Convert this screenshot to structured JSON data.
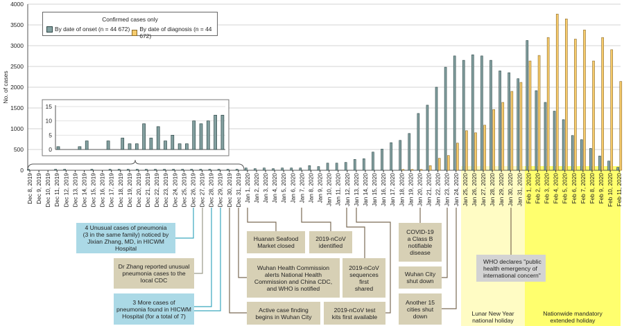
{
  "chart_data": {
    "type": "bar",
    "title": "",
    "xlabel": "",
    "ylabel": "No. of cases",
    "ylim": [
      0,
      4000
    ],
    "yticks": [
      "0",
      "500",
      "1000",
      "1500",
      "2000",
      "2500",
      "3000",
      "3500",
      "4000"
    ],
    "grid": true,
    "legend": {
      "position": "top-left",
      "title": "Confirmed cases only"
    },
    "categories": [
      "Dec 8, 2019",
      "Dec 9, 2019",
      "Dec 10, 2019",
      "Dec 11, 2019",
      "Dec 12, 2019",
      "Dec 13, 2019",
      "Dec 14, 2019",
      "Dec 15, 2019",
      "Dec 16, 2019",
      "Dec 17, 2019",
      "Dec 18, 2019",
      "Dec 19, 2019",
      "Dec 20, 2019",
      "Dec 21, 2019",
      "Dec 22, 2019",
      "Dec 23, 2019",
      "Dec 24, 2019",
      "Dec 25, 2019",
      "Dec 26, 2019",
      "Dec 27, 2019",
      "Dec 28, 2019",
      "Dec 29, 2019",
      "Dec 30, 2019",
      "Dec 31, 2019",
      "Jan 1, 2020",
      "Jan 2, 2020",
      "Jan 3, 2020",
      "Jan 4, 2020",
      "Jan 5, 2020",
      "Jan 6, 2020",
      "Jan 7, 2020",
      "Jan 8, 2020",
      "Jan 9, 2020",
      "Jan 10, 2020",
      "Jan 11, 2020",
      "Jan 12, 2020",
      "Jan 13, 2020",
      "Jan 14, 2020",
      "Jan 15, 2020",
      "Jan 16, 2020",
      "Jan 17, 2020",
      "Jan 18, 2020",
      "Jan 19, 2020",
      "Jan 20, 2020",
      "Jan 21, 2020",
      "Jan 22, 2020",
      "Jan 23, 2020",
      "Jan 24, 2020",
      "Jan 25, 2020",
      "Jan 26, 2020",
      "Jan 27, 2020",
      "Jan 28, 2020",
      "Jan 29, 2020",
      "Jan 30, 2020",
      "Jan 31, 2020",
      "Feb 1, 2020",
      "Feb 2, 2020",
      "Feb 3, 2020",
      "Feb 4, 2020",
      "Feb 5, 2020",
      "Feb 6, 2020",
      "Feb 7, 2020",
      "Feb 8, 2020",
      "Feb 9, 2020",
      "Feb 10, 2020",
      "Feb 11, 2020"
    ],
    "series": [
      {
        "name": "By date of onset (n = 44 672)",
        "color": "#83a0a0",
        "edge": "#2c4646",
        "values": [
          1,
          0,
          0,
          1,
          3,
          0,
          0,
          3,
          0,
          4,
          2,
          2,
          9,
          4,
          8,
          3,
          5,
          2,
          2,
          10,
          9,
          10,
          12,
          12,
          55,
          39,
          55,
          39,
          55,
          55,
          55,
          111,
          89,
          172,
          172,
          189,
          261,
          278,
          438,
          510,
          665,
          720,
          886,
          1368,
          1568,
          2000,
          2482,
          2753,
          2648,
          2781,
          2753,
          2648,
          2393,
          2349,
          2205,
          3125,
          1917,
          1634,
          1424,
          1219,
          837,
          737,
          526,
          343,
          222,
          72
        ]
      },
      {
        "name": "By date of diagnosis (n = 44 672)",
        "color": "#f6cb6c",
        "edge": "#8a6a2a",
        "values": [
          0,
          0,
          0,
          0,
          0,
          0,
          0,
          0,
          0,
          0,
          0,
          0,
          0,
          0,
          0,
          0,
          0,
          0,
          0,
          0,
          0,
          0,
          0,
          0,
          0,
          0,
          0,
          0,
          0,
          0,
          0,
          0,
          0,
          0,
          0,
          0,
          0,
          0,
          0,
          0,
          0,
          5,
          5,
          5,
          111,
          288,
          355,
          654,
          953,
          903,
          1086,
          1463,
          1634,
          1900,
          2116,
          2632,
          2765,
          3197,
          3762,
          3645,
          3158,
          3379,
          2632,
          3197,
          2903,
          2139
        ]
      }
    ],
    "inset": {
      "range": [
        "Dec 8, 2019",
        "Dec 31, 2019"
      ],
      "ylim": [
        0,
        15
      ],
      "yticks": [
        "0",
        "5",
        "10",
        "15"
      ]
    }
  },
  "annotations": {
    "a1": "4 Unusual cases of pneumonia\n(3 in the same family) noticed by\nJixian Zhang, MD, in HICWM Hospital",
    "a2": "Dr Zhang reported unusual\npneumonia cases to the\nlocal CDC",
    "a3": "3 More cases of\npneumonia found in HICWM\nHospital (for a total of 7)",
    "a4": "Huanan Seafood\nMarket closed",
    "a5": "Wuhan Health Commission\nalerts National Health\nCommission and China CDC,\nand WHO is notified",
    "a6": "Active case finding\nbegins in Wuhan City",
    "a7": "2019-nCoV\nidentified",
    "a8": "2019-nCoV\nsequences\nfirst\nshared",
    "a9": "2019-nCoV test\nkits first available",
    "a10": "COVID-19\na Class B\nnotifiable\ndisease",
    "a11": "Wuhan City\nshut down",
    "a12": "Another 15\ncities shut\ndown",
    "a13": "WHO declares \"public\nhealth emergency of\ninternational concern\"",
    "lunar": "Lunar New Year\nnational holiday",
    "extended": "Nationwide mandatory\nextended holiday"
  },
  "colors": {
    "blue_box": "#abd9e6",
    "tan_box": "#d7d0b5",
    "grey_box": "#d3d3d3",
    "lunar": "#fffcc4",
    "extended": "#ffff6e"
  }
}
